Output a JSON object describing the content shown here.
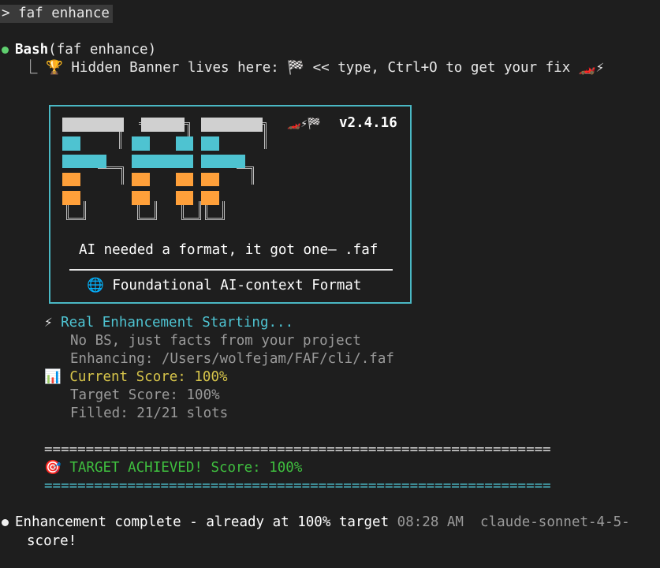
{
  "prompt": {
    "text": "> faf enhance"
  },
  "tool_call": {
    "name": "Bash",
    "args": "(faf enhance)",
    "status_color": "#5fcf6f"
  },
  "tool_output": {
    "prefix": "⎿ ",
    "trophy_icon": "🏆",
    "text": " Hidden Banner lives here: 🏁 << type, Ctrl+O to get your fix 🏎️⚡"
  },
  "banner": {
    "logo_text": "FAF",
    "version_emoji": "🏎️⚡🏁",
    "version": "v2.4.16",
    "tagline": "AI needed a format, it got one— .faf",
    "globe_icon": "🌐",
    "subtitle": "Foundational AI-context Format",
    "colors": {
      "border": "#4ab8c4",
      "grey": "#d0d0d0",
      "cyan": "#4ec3d1",
      "orange": "#ffa03a"
    }
  },
  "enhance": {
    "bolt_icon": "⚡",
    "heading": "Real Enhancement Starting...",
    "line1": "No BS, just facts from your project",
    "line2": "Enhancing: /Users/wolfejam/FAF/cli/.faf",
    "chart_icon": "📊",
    "current_score": "Current Score: 100%",
    "target_score": "Target Score: 100%",
    "filled": "Filled: 21/21 slots"
  },
  "result": {
    "separator": "=============================================================",
    "target_icon": "🎯",
    "achieved": "TARGET ACHIEVED! Score: 100%"
  },
  "final": {
    "message": "Enhancement complete - already at 100% target",
    "timestamp": "08:28 AM",
    "model": "claude-sonnet-4-5-",
    "message_cont": "score!"
  }
}
